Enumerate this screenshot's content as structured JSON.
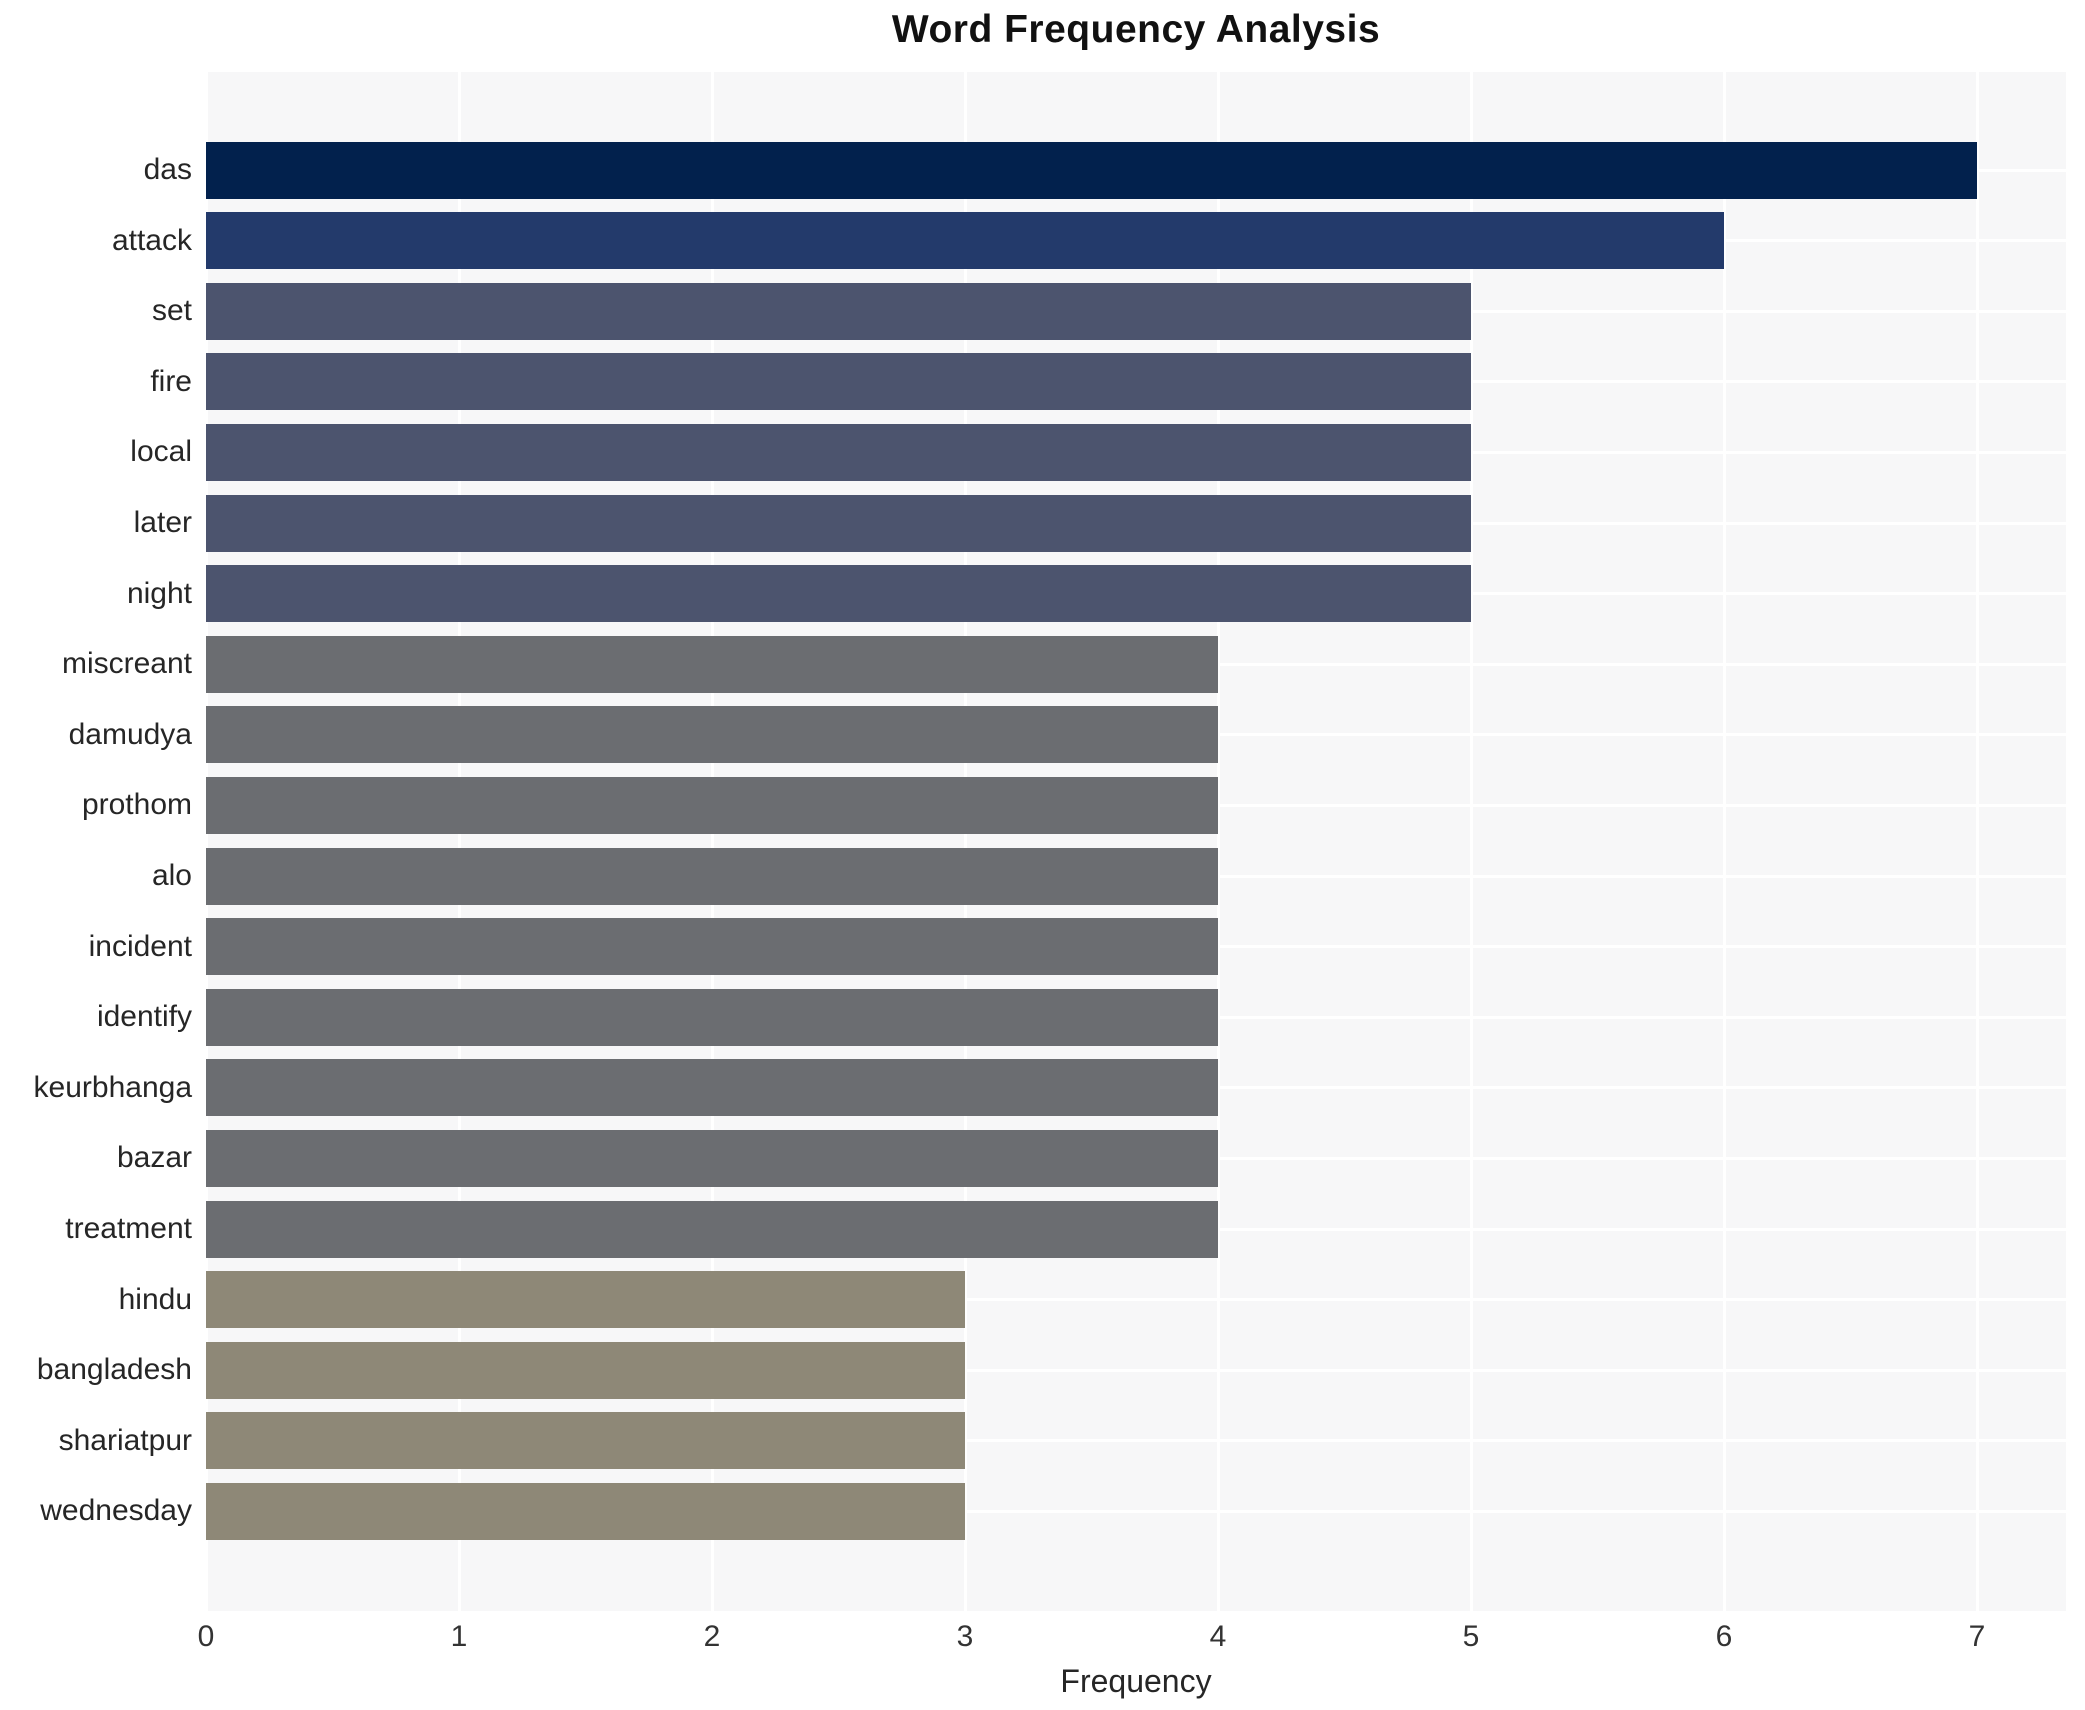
{
  "chart_data": {
    "type": "bar",
    "orientation": "horizontal",
    "title": "Word Frequency Analysis",
    "xlabel": "Frequency",
    "ylabel": "",
    "categories": [
      "das",
      "attack",
      "set",
      "fire",
      "local",
      "later",
      "night",
      "miscreant",
      "damudya",
      "prothom",
      "alo",
      "incident",
      "identify",
      "keurbhanga",
      "bazar",
      "treatment",
      "hindu",
      "bangladesh",
      "shariatpur",
      "wednesday"
    ],
    "values": [
      7,
      6,
      5,
      5,
      5,
      5,
      5,
      4,
      4,
      4,
      4,
      4,
      4,
      4,
      4,
      4,
      3,
      3,
      3,
      3
    ],
    "xticks": [
      0,
      1,
      2,
      3,
      4,
      5,
      6,
      7
    ],
    "xlim": [
      0,
      7.35
    ],
    "grid": true,
    "legend": "none",
    "plot_background": "#f7f7f8",
    "gridline_color": "#ffffff",
    "bar_colors_by_value": {
      "7": "#02214d",
      "6": "#233a6b",
      "5": "#4c546e",
      "4": "#6b6d71",
      "3": "#8e8877"
    }
  }
}
